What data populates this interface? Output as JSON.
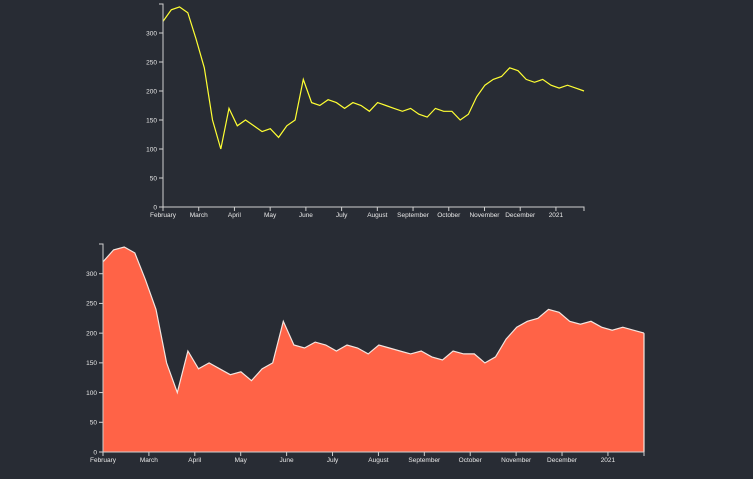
{
  "chart_data": [
    {
      "type": "line",
      "title": "",
      "xlabel": "",
      "ylabel": "",
      "ylim": [
        0,
        350
      ],
      "y_ticks": [
        0,
        50,
        100,
        150,
        200,
        250,
        300
      ],
      "x_ticks": [
        "February",
        "March",
        "April",
        "May",
        "June",
        "July",
        "August",
        "September",
        "October",
        "November",
        "December",
        "2021"
      ],
      "line_color": "#ffff33",
      "grid": false,
      "x": [
        "Feb 1",
        "Feb 8",
        "Feb 15",
        "Feb 22",
        "Mar 1",
        "Mar 8",
        "Mar 15",
        "Mar 22",
        "Mar 29",
        "Apr 5",
        "Apr 12",
        "Apr 19",
        "Apr 26",
        "May 3",
        "May 10",
        "May 17",
        "May 24",
        "May 31",
        "Jun 7",
        "Jun 14",
        "Jun 21",
        "Jun 28",
        "Jul 5",
        "Jul 12",
        "Jul 19",
        "Jul 26",
        "Aug 2",
        "Aug 9",
        "Aug 16",
        "Aug 23",
        "Aug 30",
        "Sep 6",
        "Sep 13",
        "Sep 20",
        "Sep 27",
        "Oct 4",
        "Oct 11",
        "Oct 18",
        "Oct 25",
        "Nov 1",
        "Nov 8",
        "Nov 15",
        "Nov 22",
        "Nov 29",
        "Dec 6",
        "Dec 13",
        "Dec 20",
        "Dec 27",
        "Jan 3",
        "Jan 10",
        "Jan 17",
        "Jan 24"
      ],
      "values": [
        320,
        340,
        345,
        335,
        290,
        240,
        150,
        100,
        170,
        140,
        150,
        140,
        130,
        135,
        120,
        140,
        150,
        220,
        180,
        175,
        185,
        180,
        170,
        180,
        175,
        165,
        180,
        175,
        170,
        165,
        170,
        160,
        155,
        170,
        165,
        165,
        150,
        160,
        190,
        210,
        220,
        225,
        240,
        235,
        220,
        215,
        220,
        210,
        205,
        210,
        205,
        200
      ]
    },
    {
      "type": "area",
      "title": "",
      "xlabel": "",
      "ylabel": "",
      "ylim": [
        0,
        350
      ],
      "y_ticks": [
        0,
        50,
        100,
        150,
        200,
        250,
        300
      ],
      "x_ticks": [
        "February",
        "March",
        "April",
        "May",
        "June",
        "July",
        "August",
        "September",
        "October",
        "November",
        "December",
        "2021"
      ],
      "fill_color": "#ff6347",
      "stroke_color": "#f5e6e0",
      "grid": false,
      "x": [
        "Feb 1",
        "Feb 8",
        "Feb 15",
        "Feb 22",
        "Mar 1",
        "Mar 8",
        "Mar 15",
        "Mar 22",
        "Mar 29",
        "Apr 5",
        "Apr 12",
        "Apr 19",
        "Apr 26",
        "May 3",
        "May 10",
        "May 17",
        "May 24",
        "May 31",
        "Jun 7",
        "Jun 14",
        "Jun 21",
        "Jun 28",
        "Jul 5",
        "Jul 12",
        "Jul 19",
        "Jul 26",
        "Aug 2",
        "Aug 9",
        "Aug 16",
        "Aug 23",
        "Aug 30",
        "Sep 6",
        "Sep 13",
        "Sep 20",
        "Sep 27",
        "Oct 4",
        "Oct 11",
        "Oct 18",
        "Oct 25",
        "Nov 1",
        "Nov 8",
        "Nov 15",
        "Nov 22",
        "Nov 29",
        "Dec 6",
        "Dec 13",
        "Dec 20",
        "Dec 27",
        "Jan 3",
        "Jan 10",
        "Jan 17",
        "Jan 24"
      ],
      "values": [
        320,
        340,
        345,
        335,
        290,
        240,
        150,
        100,
        170,
        140,
        150,
        140,
        130,
        135,
        120,
        140,
        150,
        220,
        180,
        175,
        185,
        180,
        170,
        180,
        175,
        165,
        180,
        175,
        170,
        165,
        170,
        160,
        155,
        170,
        165,
        165,
        150,
        160,
        190,
        210,
        220,
        225,
        240,
        235,
        220,
        215,
        220,
        210,
        205,
        210,
        205,
        200
      ]
    }
  ]
}
